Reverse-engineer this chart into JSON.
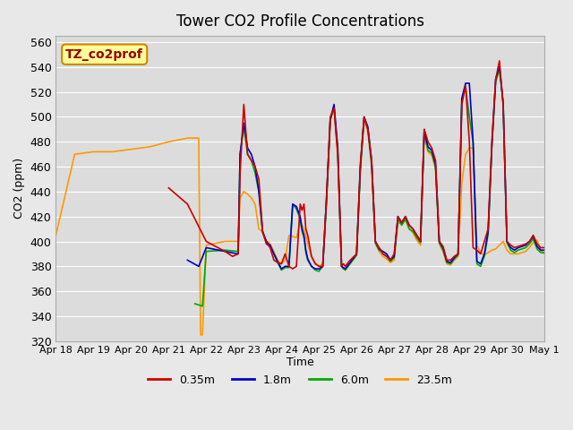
{
  "title": "Tower CO2 Profile Concentrations",
  "xlabel": "Time",
  "ylabel": "CO2 (ppm)",
  "ylim": [
    320,
    565
  ],
  "xlim": [
    0,
    13
  ],
  "background_color": "#e8e8e8",
  "plot_bg_color": "#dcdcdc",
  "label_box_text": "TZ_co2prof",
  "label_box_color": "#ffff99",
  "label_box_border": "#cc8800",
  "label_box_text_color": "#990000",
  "x_ticks": [
    0,
    1,
    2,
    3,
    4,
    5,
    6,
    7,
    8,
    9,
    10,
    11,
    12,
    13
  ],
  "x_tick_labels": [
    "Apr 18",
    "Apr 19",
    "Apr 20",
    "Apr 21",
    "Apr 22",
    "Apr 23",
    "Apr 24",
    "Apr 25",
    "Apr 26",
    "Apr 27",
    "Apr 28",
    "Apr 29",
    "Apr 30",
    "May 1"
  ],
  "series": {
    "red": {
      "label": "0.35m",
      "color": "#cc0000",
      "x": [
        3.0,
        3.5,
        4.0,
        4.5,
        4.7,
        4.85,
        4.9,
        5.0,
        5.1,
        5.2,
        5.3,
        5.4,
        5.5,
        5.6,
        5.65,
        5.7,
        5.8,
        5.9,
        6.0,
        6.1,
        6.2,
        6.3,
        6.4,
        6.5,
        6.55,
        6.6,
        6.65,
        6.7,
        6.8,
        6.9,
        7.0,
        7.1,
        7.2,
        7.3,
        7.4,
        7.5,
        7.6,
        7.65,
        7.7,
        7.8,
        7.9,
        8.0,
        8.1,
        8.2,
        8.3,
        8.4,
        8.5,
        8.6,
        8.65,
        8.7,
        8.8,
        8.9,
        9.0,
        9.1,
        9.2,
        9.3,
        9.4,
        9.5,
        9.6,
        9.7,
        9.8,
        9.9,
        10.0,
        10.1,
        10.2,
        10.3,
        10.4,
        10.5,
        10.6,
        10.7,
        10.8,
        10.9,
        11.0,
        11.1,
        11.2,
        11.3,
        11.4,
        11.5,
        11.6,
        11.7,
        11.8,
        11.9,
        12.0,
        12.1,
        12.2,
        12.3,
        12.4,
        12.5,
        12.6,
        12.7,
        12.8,
        12.9,
        13.0
      ],
      "y": [
        443,
        430,
        400,
        392,
        388,
        390,
        455,
        510,
        470,
        465,
        460,
        450,
        408,
        398,
        397,
        395,
        385,
        383,
        382,
        390,
        380,
        378,
        380,
        430,
        425,
        430,
        410,
        405,
        388,
        382,
        380,
        380,
        435,
        500,
        507,
        470,
        380,
        382,
        380,
        384,
        387,
        390,
        462,
        500,
        490,
        465,
        400,
        395,
        393,
        390,
        388,
        385,
        390,
        420,
        415,
        420,
        413,
        410,
        405,
        400,
        490,
        480,
        475,
        465,
        400,
        396,
        385,
        385,
        388,
        390,
        510,
        525,
        480,
        395,
        393,
        390,
        400,
        410,
        480,
        530,
        545,
        510,
        400,
        397,
        395,
        396,
        397,
        398,
        400,
        405,
        398,
        395,
        395
      ]
    },
    "blue": {
      "label": "1.8m",
      "color": "#0000cc",
      "x": [
        3.5,
        3.8,
        4.0,
        4.5,
        4.85,
        4.9,
        5.0,
        5.1,
        5.2,
        5.3,
        5.4,
        5.5,
        5.6,
        5.65,
        5.7,
        5.8,
        5.9,
        6.0,
        6.1,
        6.2,
        6.3,
        6.4,
        6.5,
        6.55,
        6.6,
        6.65,
        6.7,
        6.8,
        6.9,
        7.0,
        7.1,
        7.2,
        7.3,
        7.4,
        7.5,
        7.6,
        7.65,
        7.7,
        7.8,
        7.9,
        8.0,
        8.1,
        8.2,
        8.3,
        8.4,
        8.5,
        8.6,
        8.65,
        8.7,
        8.8,
        8.9,
        9.0,
        9.1,
        9.2,
        9.3,
        9.4,
        9.5,
        9.6,
        9.7,
        9.8,
        9.9,
        10.0,
        10.1,
        10.2,
        10.3,
        10.4,
        10.5,
        10.6,
        10.7,
        10.8,
        10.9,
        11.0,
        11.1,
        11.2,
        11.3,
        11.4,
        11.5,
        11.6,
        11.7,
        11.8,
        11.9,
        12.0,
        12.1,
        12.2,
        12.3,
        12.4,
        12.5,
        12.6,
        12.7,
        12.8,
        12.9,
        13.0
      ],
      "y": [
        385,
        380,
        395,
        392,
        390,
        470,
        495,
        475,
        470,
        460,
        440,
        408,
        400,
        398,
        397,
        390,
        384,
        378,
        380,
        380,
        430,
        428,
        420,
        410,
        405,
        393,
        386,
        380,
        378,
        378,
        380,
        435,
        498,
        510,
        475,
        380,
        379,
        378,
        382,
        386,
        390,
        460,
        500,
        492,
        465,
        400,
        394,
        393,
        392,
        390,
        385,
        388,
        420,
        415,
        420,
        413,
        410,
        405,
        400,
        490,
        476,
        473,
        462,
        400,
        395,
        384,
        383,
        387,
        390,
        515,
        527,
        527,
        480,
        384,
        382,
        390,
        408,
        478,
        530,
        541,
        510,
        400,
        395,
        393,
        395,
        396,
        397,
        400,
        404,
        396,
        393,
        393
      ]
    },
    "green": {
      "label": "6.0m",
      "color": "#00aa00",
      "x": [
        3.7,
        3.9,
        4.0,
        4.5,
        4.85,
        4.9,
        5.0,
        5.1,
        5.2,
        5.3,
        5.4,
        5.5,
        5.6,
        5.65,
        5.7,
        5.8,
        5.9,
        6.0,
        6.1,
        6.2,
        6.3,
        6.4,
        6.5,
        6.55,
        6.6,
        6.65,
        6.7,
        6.8,
        6.9,
        7.0,
        7.1,
        7.2,
        7.3,
        7.4,
        7.5,
        7.6,
        7.65,
        7.7,
        7.8,
        7.9,
        8.0,
        8.1,
        8.2,
        8.3,
        8.4,
        8.5,
        8.6,
        8.65,
        8.7,
        8.8,
        8.9,
        9.0,
        9.1,
        9.2,
        9.3,
        9.4,
        9.5,
        9.6,
        9.7,
        9.8,
        9.9,
        10.0,
        10.1,
        10.2,
        10.3,
        10.4,
        10.5,
        10.6,
        10.7,
        10.8,
        10.9,
        11.0,
        11.1,
        11.2,
        11.3,
        11.4,
        11.5,
        11.6,
        11.7,
        11.8,
        11.9,
        12.0,
        12.1,
        12.2,
        12.3,
        12.4,
        12.5,
        12.6,
        12.7,
        12.8,
        12.9,
        13.0
      ],
      "y": [
        350,
        348,
        392,
        393,
        392,
        470,
        492,
        470,
        465,
        455,
        440,
        407,
        399,
        397,
        396,
        390,
        383,
        377,
        379,
        379,
        430,
        426,
        418,
        408,
        403,
        391,
        385,
        380,
        377,
        376,
        380,
        432,
        497,
        508,
        472,
        380,
        378,
        377,
        381,
        385,
        389,
        458,
        499,
        490,
        462,
        399,
        393,
        392,
        390,
        388,
        384,
        387,
        418,
        413,
        418,
        410,
        408,
        403,
        399,
        487,
        473,
        471,
        460,
        399,
        393,
        383,
        382,
        386,
        389,
        513,
        524,
        500,
        479,
        382,
        380,
        388,
        406,
        476,
        528,
        538,
        512,
        399,
        393,
        391,
        393,
        394,
        395,
        398,
        402,
        394,
        391,
        391
      ]
    },
    "orange": {
      "label": "23.5m",
      "color": "#ff9900",
      "x": [
        0.0,
        0.5,
        1.0,
        1.5,
        2.0,
        2.5,
        3.0,
        3.5,
        3.8,
        3.85,
        3.9,
        4.0,
        4.5,
        4.85,
        4.9,
        5.0,
        5.1,
        5.2,
        5.3,
        5.4,
        5.5,
        5.6,
        5.65,
        5.7,
        5.8,
        5.9,
        6.0,
        6.1,
        6.2,
        6.3,
        6.4,
        6.5,
        6.55,
        6.6,
        6.65,
        6.7,
        6.8,
        6.9,
        7.0,
        7.1,
        7.2,
        7.3,
        7.4,
        7.5,
        7.6,
        7.65,
        7.7,
        7.8,
        7.9,
        8.0,
        8.1,
        8.2,
        8.3,
        8.4,
        8.5,
        8.6,
        8.65,
        8.7,
        8.8,
        8.9,
        9.0,
        9.1,
        9.2,
        9.3,
        9.4,
        9.5,
        9.6,
        9.7,
        9.8,
        9.9,
        10.0,
        10.1,
        10.2,
        10.3,
        10.4,
        10.5,
        10.6,
        10.7,
        10.8,
        10.9,
        11.0,
        11.1,
        11.2,
        11.3,
        11.4,
        11.5,
        11.6,
        11.7,
        11.8,
        11.9,
        12.0,
        12.1,
        12.2,
        12.3,
        12.4,
        12.5,
        12.6,
        12.7,
        12.8,
        12.9,
        13.0
      ],
      "y": [
        405,
        470,
        472,
        472,
        474,
        476,
        480,
        483,
        483,
        325,
        325,
        397,
        400,
        400,
        435,
        440,
        438,
        435,
        430,
        410,
        408,
        400,
        400,
        398,
        392,
        385,
        382,
        385,
        405,
        404,
        403,
        415,
        413,
        410,
        405,
        398,
        388,
        383,
        380,
        382,
        430,
        497,
        507,
        467,
        380,
        378,
        377,
        381,
        385,
        389,
        456,
        497,
        488,
        460,
        398,
        392,
        390,
        388,
        386,
        383,
        385,
        415,
        414,
        417,
        410,
        407,
        401,
        397,
        487,
        472,
        469,
        458,
        398,
        392,
        382,
        381,
        385,
        388,
        447,
        470,
        475,
        475,
        397,
        391,
        389,
        391,
        393,
        394,
        397,
        400,
        393,
        390,
        390,
        390,
        391,
        392,
        395,
        399,
        401,
        393,
        390
      ]
    }
  }
}
